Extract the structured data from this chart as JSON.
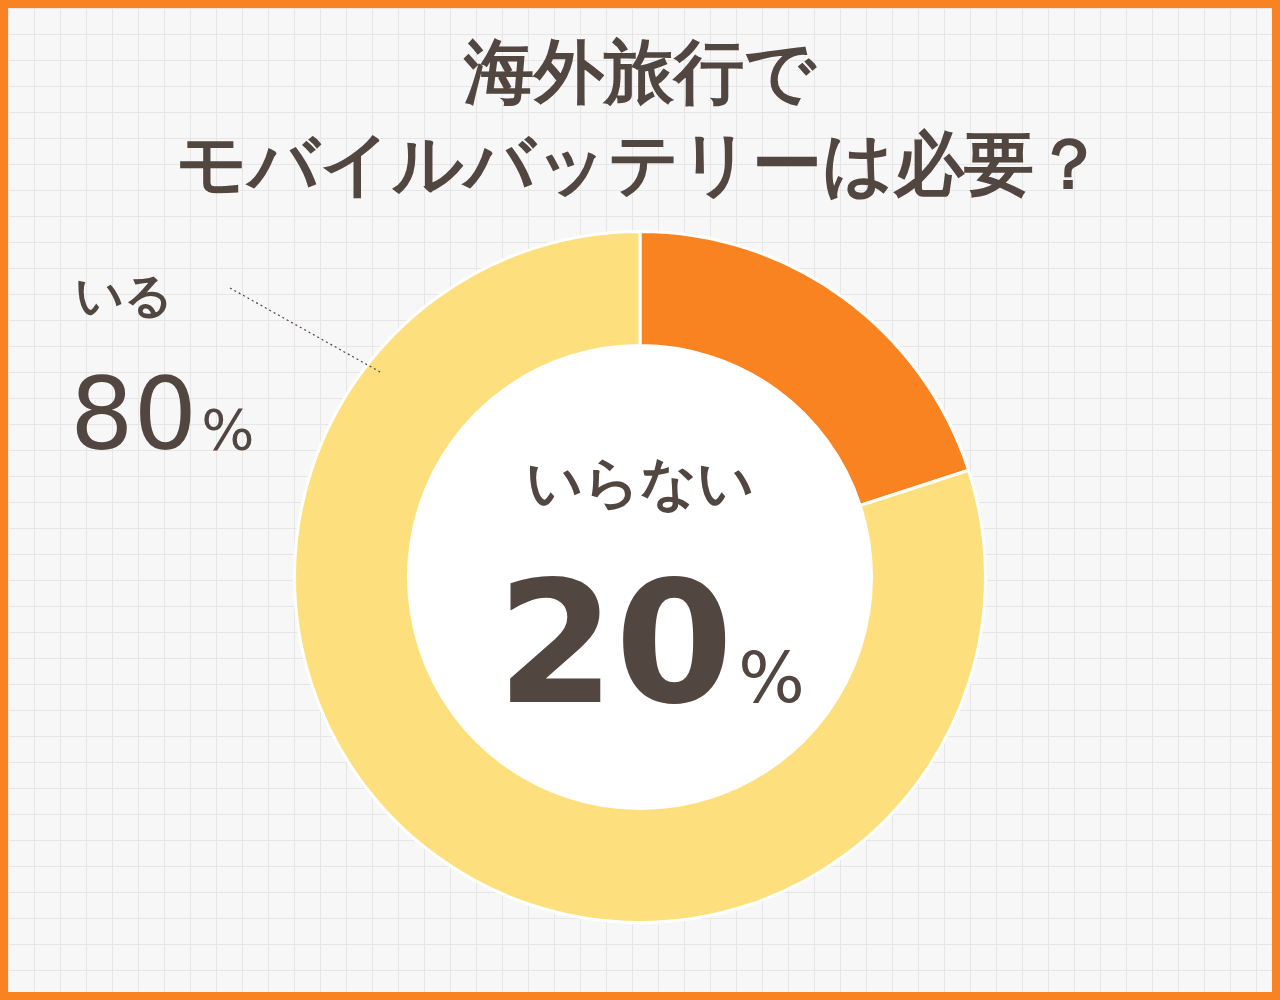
{
  "chart_data": {
    "type": "donut",
    "title": "海外旅行で",
    "subtitle": "モバイルバッテリーは必要？",
    "categories": [
      "いらない",
      "いる"
    ],
    "values": [
      20,
      80
    ],
    "value_labels": [
      "20%",
      "80%"
    ],
    "colors": [
      "#f98320",
      "#fde07d"
    ],
    "legend": false
  }
}
